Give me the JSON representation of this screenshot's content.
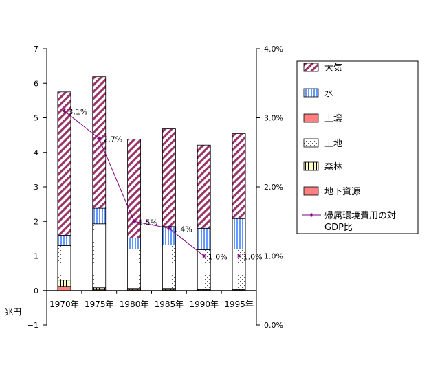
{
  "chart_data": {
    "type": "bar",
    "stacked": true,
    "categories": [
      "1970年",
      "1975年",
      "1980年",
      "1985年",
      "1990年",
      "1995年"
    ],
    "ylabel": "兆円",
    "ylim": [
      -1,
      7
    ],
    "yticks": [
      -1,
      0,
      1,
      2,
      3,
      4,
      5,
      6,
      7
    ],
    "y2lim": [
      0.0,
      4.0
    ],
    "y2ticks": [
      "0.0%",
      "1.0%",
      "2.0%",
      "3.0%",
      "4.0%"
    ],
    "grid": false,
    "legend_position": "right",
    "series": [
      {
        "name": "地下資源",
        "kind": "bar",
        "color": "#ff8080",
        "pattern": "cross-hatch",
        "values": [
          0.12,
          0.02,
          0.02,
          0.02,
          0.02,
          0.02
        ]
      },
      {
        "name": "森林",
        "kind": "bar",
        "color": "#ffffcc",
        "pattern": "vertical-lines",
        "values": [
          0.18,
          0.06,
          0.04,
          0.04,
          0.02,
          0.02
        ]
      },
      {
        "name": "土地",
        "kind": "bar",
        "color": "#ffffff",
        "pattern": "dots",
        "values": [
          1.0,
          1.85,
          1.14,
          1.26,
          1.14,
          1.16
        ]
      },
      {
        "name": "土壌",
        "kind": "bar",
        "color": "#ff8080",
        "pattern": "solid",
        "values": [
          0.0,
          0.0,
          0.0,
          0.0,
          0.0,
          0.0
        ]
      },
      {
        "name": "水",
        "kind": "bar",
        "color": "#99ccff",
        "pattern": "vertical-stripes",
        "values": [
          0.3,
          0.45,
          0.32,
          0.53,
          0.62,
          0.88
        ]
      },
      {
        "name": "大気",
        "kind": "bar",
        "color": "#993366",
        "pattern": "diagonal-stripes",
        "values": [
          4.15,
          3.81,
          2.86,
          2.83,
          2.41,
          2.46
        ]
      },
      {
        "name": "帰属環境費用の対\nGDP比",
        "kind": "line",
        "axis": "right",
        "color": "#800080",
        "values": [
          3.1,
          2.7,
          1.5,
          1.4,
          1.0,
          1.0
        ],
        "labels": [
          "3.1%",
          "2.7%",
          "1.5%",
          "1.4%",
          "1.0%",
          "1.0%"
        ]
      }
    ],
    "legend_order": [
      "大気",
      "水",
      "土壌",
      "土地",
      "森林",
      "地下資源",
      "帰属環境費用の対\nGDP比"
    ]
  }
}
